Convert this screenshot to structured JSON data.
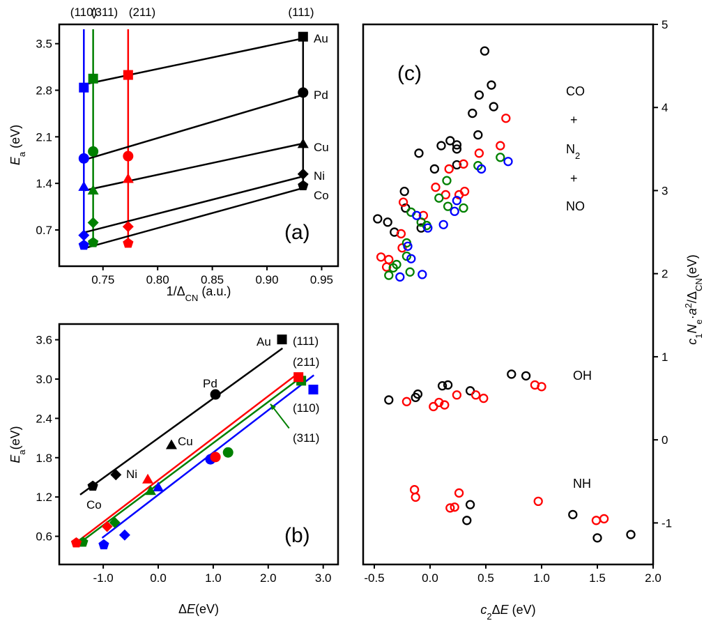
{
  "chart_data": [
    {
      "id": "a",
      "type": "scatter",
      "panel_label": "(a)",
      "xlabel": {
        "pre": "1/Δ",
        "sub": "CN",
        "post": " (a.u.)"
      },
      "ylabel": {
        "italic": "E",
        "sub": "a",
        "post": " (eV)"
      },
      "xlim": [
        0.71,
        0.965
      ],
      "ylim": [
        0.155,
        3.79
      ],
      "xticks": [
        0.75,
        0.8,
        0.85,
        0.9,
        0.95
      ],
      "xtick_labels": [
        "0.75",
        "0.80",
        "0.85",
        "0.90",
        "0.95"
      ],
      "yticks": [
        0.7,
        1.4,
        2.1,
        2.8,
        3.5
      ],
      "ytick_labels": [
        "0.7",
        "1.4",
        "2.1",
        "2.8",
        "3.5"
      ],
      "grid": false,
      "facets": [
        {
          "label": "(110)",
          "color": "#0000ff",
          "x": 0.7325
        },
        {
          "label": "(311)",
          "color": "#008000",
          "x": 0.741
        },
        {
          "label": "(211)",
          "color": "#ff0000",
          "x": 0.773
        },
        {
          "label": "(111)",
          "color": "#000000",
          "x": 0.933
        }
      ],
      "metals": [
        {
          "label": "Au",
          "marker": "square",
          "values": [
            2.84,
            2.975,
            3.03,
            3.605
          ],
          "fit": [
            [
              0.7335,
              2.89
            ],
            [
              0.933,
              3.58
            ]
          ]
        },
        {
          "label": "Pd",
          "marker": "circle",
          "values": [
            1.775,
            1.88,
            1.81,
            2.765
          ],
          "fit": [
            [
              0.7335,
              1.757
            ],
            [
              0.933,
              2.73
            ]
          ]
        },
        {
          "label": "Cu",
          "marker": "triangle",
          "values": [
            1.35,
            1.295,
            1.47,
            1.995
          ],
          "fit": [
            [
              0.7335,
              1.295
            ],
            [
              0.933,
              2.0
            ]
          ]
        },
        {
          "label": "Ni",
          "marker": "diamond",
          "values": [
            0.62,
            0.81,
            0.75,
            1.54
          ],
          "fit": [
            [
              0.7335,
              0.665
            ],
            [
              0.933,
              1.505
            ]
          ]
        },
        {
          "label": "Co",
          "marker": "pentagon",
          "values": [
            0.47,
            0.51,
            0.5,
            1.365
          ],
          "fit": [
            [
              0.732,
              0.42
            ],
            [
              0.933,
              1.33
            ]
          ]
        }
      ]
    },
    {
      "id": "b",
      "type": "scatter",
      "panel_label": "(b)",
      "xlabel": {
        "pre": "Δ",
        "italic": "E",
        "post": "(eV)"
      },
      "ylabel": {
        "italic": "E",
        "sub": "a",
        "post": "(eV)"
      },
      "xlim": [
        -1.8,
        3.27
      ],
      "ylim": [
        0.17,
        3.84
      ],
      "xticks": [
        -1.0,
        0.0,
        1.0,
        2.0,
        3.0
      ],
      "xtick_labels": [
        "-1.0",
        "0.0",
        "1.0",
        "2.0",
        "3.0"
      ],
      "yticks": [
        0.6,
        1.2,
        1.8,
        2.4,
        3.0,
        3.6
      ],
      "ytick_labels": [
        "0.6",
        "1.2",
        "1.8",
        "2.4",
        "3.0",
        "3.6"
      ],
      "grid": false,
      "series": [
        {
          "facet": "(111)",
          "color": "#000000",
          "fit": [
            [
              -1.42,
              1.235
            ],
            [
              2.26,
              3.47
            ]
          ],
          "points": [
            {
              "marker": "square",
              "x": 2.25,
              "y": 3.605,
              "label": "Au"
            },
            {
              "marker": "circle",
              "x": 1.04,
              "y": 2.765,
              "label": "Pd"
            },
            {
              "marker": "triangle",
              "x": 0.24,
              "y": 1.995,
              "label": "Cu"
            },
            {
              "marker": "diamond",
              "x": -0.77,
              "y": 1.54,
              "label": "Ni"
            },
            {
              "marker": "pentagon",
              "x": -1.19,
              "y": 1.365,
              "label": "Co"
            }
          ]
        },
        {
          "facet": "(211)",
          "color": "#ff0000",
          "fit": [
            [
              -1.49,
              0.505
            ],
            [
              2.5,
              3.06
            ]
          ],
          "points": [
            {
              "marker": "square",
              "x": 2.55,
              "y": 3.03
            },
            {
              "marker": "circle",
              "x": 1.04,
              "y": 1.81
            },
            {
              "marker": "triangle",
              "x": -0.19,
              "y": 1.47
            },
            {
              "marker": "diamond",
              "x": -0.93,
              "y": 0.75
            },
            {
              "marker": "pentagon",
              "x": -1.49,
              "y": 0.5
            }
          ]
        },
        {
          "facet": "(311)",
          "color": "#008000",
          "fit": [
            [
              -1.42,
              0.505
            ],
            [
              2.57,
              3.01
            ]
          ],
          "points": [
            {
              "marker": "square",
              "x": 2.6,
              "y": 2.975
            },
            {
              "marker": "circle",
              "x": 1.27,
              "y": 1.88
            },
            {
              "marker": "triangle",
              "x": -0.14,
              "y": 1.295
            },
            {
              "marker": "diamond",
              "x": -0.79,
              "y": 0.81
            },
            {
              "marker": "pentagon",
              "x": -1.37,
              "y": 0.51
            }
          ]
        },
        {
          "facet": "(110)",
          "color": "#0000ff",
          "fit": [
            [
              -1.02,
              0.575
            ],
            [
              2.83,
              3.06
            ]
          ],
          "points": [
            {
              "marker": "square",
              "x": 2.82,
              "y": 2.84
            },
            {
              "marker": "circle",
              "x": 0.95,
              "y": 1.775
            },
            {
              "marker": "triangle",
              "x": 0.0,
              "y": 1.35
            },
            {
              "marker": "diamond",
              "x": -0.61,
              "y": 0.62
            },
            {
              "marker": "pentagon",
              "x": -0.99,
              "y": 0.47
            }
          ]
        }
      ],
      "arrow_311": {
        "from": [
          2.38,
          2.25
        ],
        "to": [
          2.04,
          2.62
        ]
      }
    },
    {
      "id": "c",
      "type": "scatter",
      "panel_label": "(c)",
      "xlabel": {
        "italic": "c",
        "sub": "2",
        "pre2": "Δ",
        "italic2": "E",
        "post": " (eV)"
      },
      "ylabel": {
        "italic": "c",
        "sub": "1",
        "italic2": "N",
        "sub2": "e",
        "mid": "·",
        "italic3": "a",
        "sup": "2",
        "pre": "/Δ",
        "sub3": "CN",
        "post": "(eV)"
      },
      "xlim": [
        -0.6,
        2.0
      ],
      "ylim": [
        -1.5,
        5
      ],
      "xticks": [
        -0.5,
        0.0,
        0.5,
        1.0,
        1.5,
        2.0
      ],
      "xtick_labels": [
        "-0.5",
        "0.0",
        "0.5",
        "1.0",
        "1.5",
        "2.0"
      ],
      "yticks": [
        -1,
        0,
        1,
        2,
        3,
        4,
        5
      ],
      "ytick_labels": [
        "-1",
        "0",
        "1",
        "2",
        "3",
        "4",
        "5"
      ],
      "y_axis_side": "right",
      "grid": false,
      "marker": "open-circle",
      "annotations": {
        "co": "CO",
        "plus1": "+",
        "n2": "N",
        "n2_sub": "2",
        "plus2": "+",
        "no": "NO",
        "oh": "OH",
        "nh": "NH"
      },
      "series": [
        {
          "color": "#000000",
          "points": [
            [
              0.49,
              4.68
            ],
            [
              0.55,
              4.27
            ],
            [
              0.44,
              4.15
            ],
            [
              0.57,
              4.01
            ],
            [
              0.38,
              3.93
            ],
            [
              0.43,
              3.67
            ],
            [
              -0.1,
              3.45
            ],
            [
              0.1,
              3.54
            ],
            [
              0.18,
              3.6
            ],
            [
              0.24,
              3.55
            ],
            [
              0.24,
              3.5
            ],
            [
              0.04,
              3.26
            ],
            [
              0.24,
              3.31
            ],
            [
              -0.23,
              2.99
            ],
            [
              -0.22,
              2.79
            ],
            [
              -0.47,
              2.66
            ],
            [
              -0.38,
              2.62
            ],
            [
              -0.32,
              2.5
            ],
            [
              -0.08,
              2.55
            ],
            [
              -0.37,
              0.48
            ],
            [
              -0.13,
              0.51
            ],
            [
              -0.11,
              0.55
            ],
            [
              0.11,
              0.65
            ],
            [
              0.16,
              0.66
            ],
            [
              0.36,
              0.59
            ],
            [
              0.73,
              0.79
            ],
            [
              0.86,
              0.77
            ],
            [
              0.36,
              -0.78
            ],
            [
              0.33,
              -0.97
            ],
            [
              1.28,
              -0.9
            ],
            [
              1.5,
              -1.18
            ],
            [
              1.8,
              -1.14
            ]
          ]
        },
        {
          "color": "#ff0000",
          "points": [
            [
              0.68,
              3.87
            ],
            [
              0.63,
              3.54
            ],
            [
              0.44,
              3.45
            ],
            [
              0.3,
              3.32
            ],
            [
              0.17,
              3.26
            ],
            [
              0.05,
              3.04
            ],
            [
              0.14,
              2.95
            ],
            [
              0.26,
              2.95
            ],
            [
              0.31,
              2.99
            ],
            [
              -0.24,
              2.86
            ],
            [
              -0.06,
              2.7
            ],
            [
              -0.26,
              2.48
            ],
            [
              -0.25,
              2.31
            ],
            [
              -0.44,
              2.2
            ],
            [
              -0.37,
              2.17
            ],
            [
              -0.39,
              2.08
            ],
            [
              -0.21,
              0.46
            ],
            [
              0.03,
              0.4
            ],
            [
              0.08,
              0.45
            ],
            [
              0.13,
              0.42
            ],
            [
              0.24,
              0.54
            ],
            [
              0.41,
              0.54
            ],
            [
              0.48,
              0.5
            ],
            [
              0.94,
              0.66
            ],
            [
              1.0,
              0.64
            ],
            [
              -0.14,
              -0.6
            ],
            [
              -0.13,
              -0.69
            ],
            [
              0.26,
              -0.64
            ],
            [
              0.18,
              -0.82
            ],
            [
              0.22,
              -0.81
            ],
            [
              0.97,
              -0.74
            ],
            [
              1.49,
              -0.97
            ],
            [
              1.56,
              -0.95
            ]
          ]
        },
        {
          "color": "#008000",
          "points": [
            [
              0.63,
              3.4
            ],
            [
              0.43,
              3.3
            ],
            [
              0.15,
              3.12
            ],
            [
              0.08,
              2.91
            ],
            [
              0.16,
              2.81
            ],
            [
              0.3,
              2.79
            ],
            [
              -0.17,
              2.74
            ],
            [
              -0.08,
              2.62
            ],
            [
              -0.03,
              2.58
            ],
            [
              -0.21,
              2.37
            ],
            [
              -0.21,
              2.21
            ],
            [
              -0.3,
              2.11
            ],
            [
              -0.33,
              2.07
            ],
            [
              -0.37,
              1.98
            ],
            [
              -0.18,
              2.02
            ]
          ]
        },
        {
          "color": "#0000ff",
          "points": [
            [
              0.7,
              3.35
            ],
            [
              0.46,
              3.26
            ],
            [
              0.24,
              2.88
            ],
            [
              0.22,
              2.75
            ],
            [
              0.12,
              2.59
            ],
            [
              -0.12,
              2.7
            ],
            [
              -0.02,
              2.55
            ],
            [
              -0.2,
              2.33
            ],
            [
              -0.17,
              2.18
            ],
            [
              -0.27,
              1.96
            ],
            [
              -0.07,
              1.99
            ]
          ]
        }
      ]
    }
  ]
}
